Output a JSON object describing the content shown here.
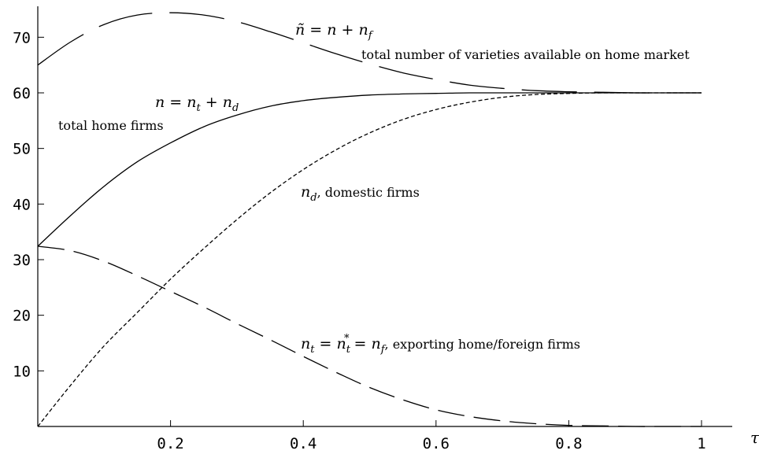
{
  "chart_data": {
    "type": "line",
    "xlabel": "τ",
    "xlim": [
      0,
      1
    ],
    "ylim": [
      0,
      75
    ],
    "x_ticks": [
      0.2,
      0.4,
      0.6,
      0.8,
      1
    ],
    "x_tick_labels": [
      "0.2",
      "0.4",
      "0.6",
      "0.8",
      "1"
    ],
    "y_ticks": [
      10,
      20,
      30,
      40,
      50,
      60,
      70
    ],
    "y_tick_labels": [
      "10",
      "20",
      "30",
      "40",
      "50",
      "60",
      "70"
    ],
    "grid": false,
    "x": [
      0,
      0.05,
      0.1,
      0.15,
      0.2,
      0.25,
      0.3,
      0.35,
      0.4,
      0.45,
      0.5,
      0.55,
      0.6,
      0.65,
      0.7,
      0.75,
      0.8,
      0.85,
      0.9,
      0.95,
      1.0
    ],
    "series": [
      {
        "id": "ntilde",
        "style": "long-dash",
        "values": [
          65.0,
          69.2,
          72.3,
          74.0,
          74.4,
          74.0,
          72.8,
          71.0,
          69.0,
          67.0,
          65.2,
          63.6,
          62.4,
          61.4,
          60.8,
          60.4,
          60.2,
          60.1,
          60.0,
          60.0,
          60.0
        ]
      },
      {
        "id": "n",
        "style": "solid",
        "values": [
          32.4,
          38.0,
          43.2,
          47.6,
          51.0,
          53.9,
          56.0,
          57.6,
          58.6,
          59.2,
          59.6,
          59.8,
          59.9,
          60.0,
          60.0,
          60.0,
          60.0,
          60.0,
          60.0,
          60.0,
          60.0
        ]
      },
      {
        "id": "nd",
        "style": "short-dash",
        "values": [
          0.0,
          7.5,
          14.5,
          20.5,
          26.5,
          32.0,
          37.2,
          42.0,
          46.2,
          49.8,
          52.8,
          55.2,
          57.0,
          58.3,
          59.2,
          59.7,
          59.9,
          60.0,
          60.0,
          60.0,
          60.0
        ]
      },
      {
        "id": "nt",
        "style": "medium-dash",
        "values": [
          32.4,
          31.6,
          29.7,
          27.1,
          24.3,
          21.5,
          18.5,
          15.6,
          12.6,
          9.7,
          7.0,
          4.8,
          3.0,
          1.8,
          1.0,
          0.5,
          0.2,
          0.1,
          0.0,
          0.0,
          0.0
        ]
      }
    ],
    "annotations": {
      "ntilde_eq": {
        "a": "ñ = n + n",
        "b": "f"
      },
      "ntilde_text": "total number of varieties available on home market",
      "n_eq": {
        "a": "n = n",
        "b": "t",
        "c": " + n",
        "d": "d"
      },
      "n_text": "total home firms",
      "nd_math": {
        "a": "n",
        "b": "d"
      },
      "nd_text": ", domestic firms",
      "nt_math": {
        "a": "n",
        "b": "t",
        "c": " = n",
        "d": "t",
        "e": "*",
        "f": " = n",
        "g": "f"
      },
      "nt_text": ", exporting home/foreign firms"
    }
  }
}
